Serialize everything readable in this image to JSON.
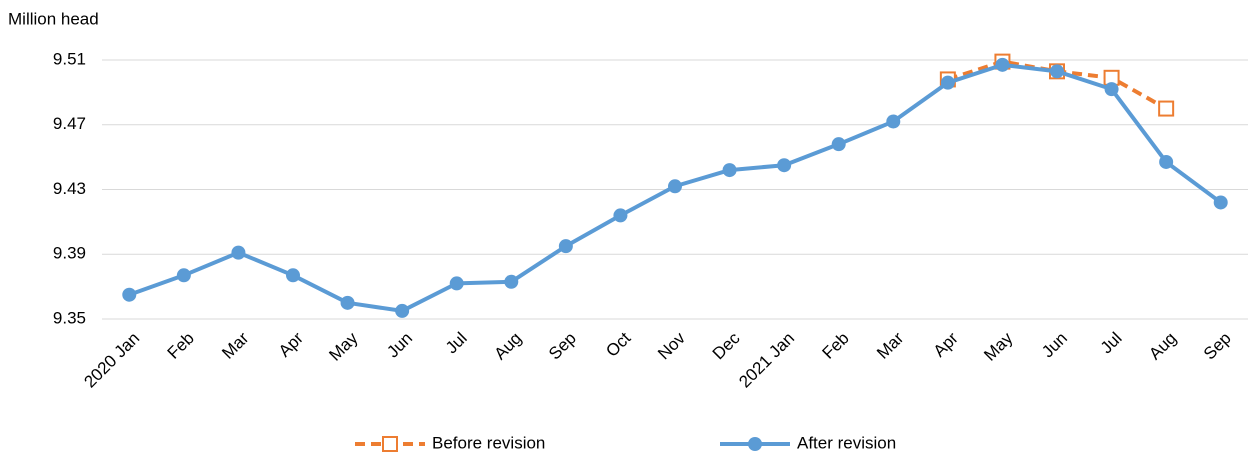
{
  "chart_data": {
    "type": "line",
    "y_axis_label": "Million head",
    "categories": [
      "2020 Jan",
      "Feb",
      "Mar",
      "Apr",
      "May",
      "Jun",
      "Jul",
      "Aug",
      "Sep",
      "Oct",
      "Nov",
      "Dec",
      "2021 Jan",
      "Feb",
      "Mar",
      "Apr",
      "May",
      "Jun",
      "Jul",
      "Aug",
      "Sep"
    ],
    "series": [
      {
        "name": "Before revision",
        "color": "#ed7d31",
        "dashed": true,
        "marker": "square",
        "values": [
          null,
          null,
          null,
          null,
          null,
          null,
          null,
          null,
          null,
          null,
          null,
          null,
          null,
          null,
          null,
          9.498,
          9.509,
          9.503,
          9.499,
          9.48,
          null
        ]
      },
      {
        "name": "After revision",
        "color": "#5b9bd5",
        "dashed": false,
        "marker": "circle",
        "values": [
          9.365,
          9.377,
          9.391,
          9.377,
          9.36,
          9.355,
          9.372,
          9.373,
          9.395,
          9.414,
          9.432,
          9.442,
          9.445,
          9.458,
          9.472,
          9.496,
          9.507,
          9.503,
          9.492,
          9.447,
          9.422
        ]
      }
    ],
    "ylim": [
      9.35,
      9.51
    ],
    "yticks": [
      9.35,
      9.39,
      9.43,
      9.47,
      9.51
    ],
    "grid": true
  }
}
